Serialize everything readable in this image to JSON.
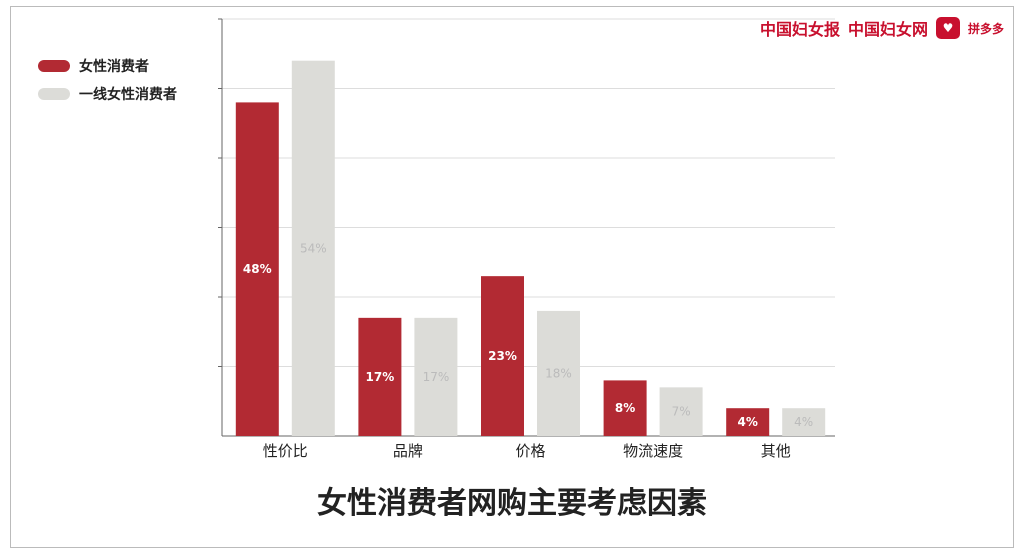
{
  "chart_data": {
    "type": "bar",
    "title": "女性消费者网购主要考虑因素",
    "categories": [
      "性价比",
      "品牌",
      "价格",
      "物流速度",
      "其他"
    ],
    "series": [
      {
        "name": "女性消费者",
        "values": [
          48,
          17,
          23,
          8,
          4
        ],
        "labels": [
          "48%",
          "17%",
          "23%",
          "8%",
          "4%"
        ],
        "color": "#b22a33"
      },
      {
        "name": "一线女性消费者",
        "values": [
          54,
          17,
          18,
          7,
          4
        ],
        "labels": [
          "54%",
          "17%",
          "18%",
          "7%",
          "4%"
        ],
        "color": "#dcdcd8"
      }
    ],
    "ylim": [
      0,
      60
    ],
    "grid": true,
    "legend_position": "top-left"
  },
  "logos": {
    "brand1": "中国妇女报",
    "brand2": "中国妇女网",
    "brand3": "拼多多"
  }
}
